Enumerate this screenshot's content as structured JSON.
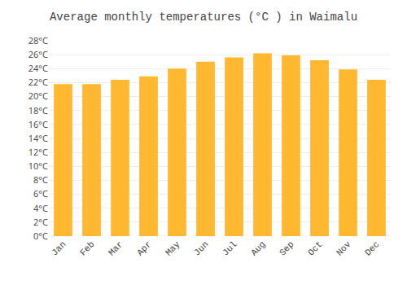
{
  "chart_data": {
    "type": "bar",
    "title": "Average monthly temperatures (°C ) in Waimalu",
    "categories": [
      "Jan",
      "Feb",
      "Mar",
      "Apr",
      "May",
      "Jun",
      "Jul",
      "Aug",
      "Sep",
      "Oct",
      "Nov",
      "Dec"
    ],
    "values": [
      21.8,
      21.8,
      22.4,
      22.9,
      24.0,
      25.0,
      25.6,
      26.2,
      25.9,
      25.2,
      23.9,
      22.4
    ],
    "color": "#FFB830",
    "ylim": [
      0,
      28
    ],
    "yticks": [
      {
        "value": 0,
        "label": "0°C"
      },
      {
        "value": 2,
        "label": "2°C"
      },
      {
        "value": 4,
        "label": "4°C"
      },
      {
        "value": 6,
        "label": "6°C"
      },
      {
        "value": 8,
        "label": "8°C"
      },
      {
        "value": 10,
        "label": "10°C"
      },
      {
        "value": 12,
        "label": "12°C"
      },
      {
        "value": 14,
        "label": "14°C"
      },
      {
        "value": 16,
        "label": "16°C"
      },
      {
        "value": 18,
        "label": "18°C"
      },
      {
        "value": 20,
        "label": "20°C"
      },
      {
        "value": 22,
        "label": "22°C"
      },
      {
        "value": 24,
        "label": "24°C"
      },
      {
        "value": 26,
        "label": "26°C"
      },
      {
        "value": 28,
        "label": "28°C"
      }
    ],
    "grid": true
  }
}
